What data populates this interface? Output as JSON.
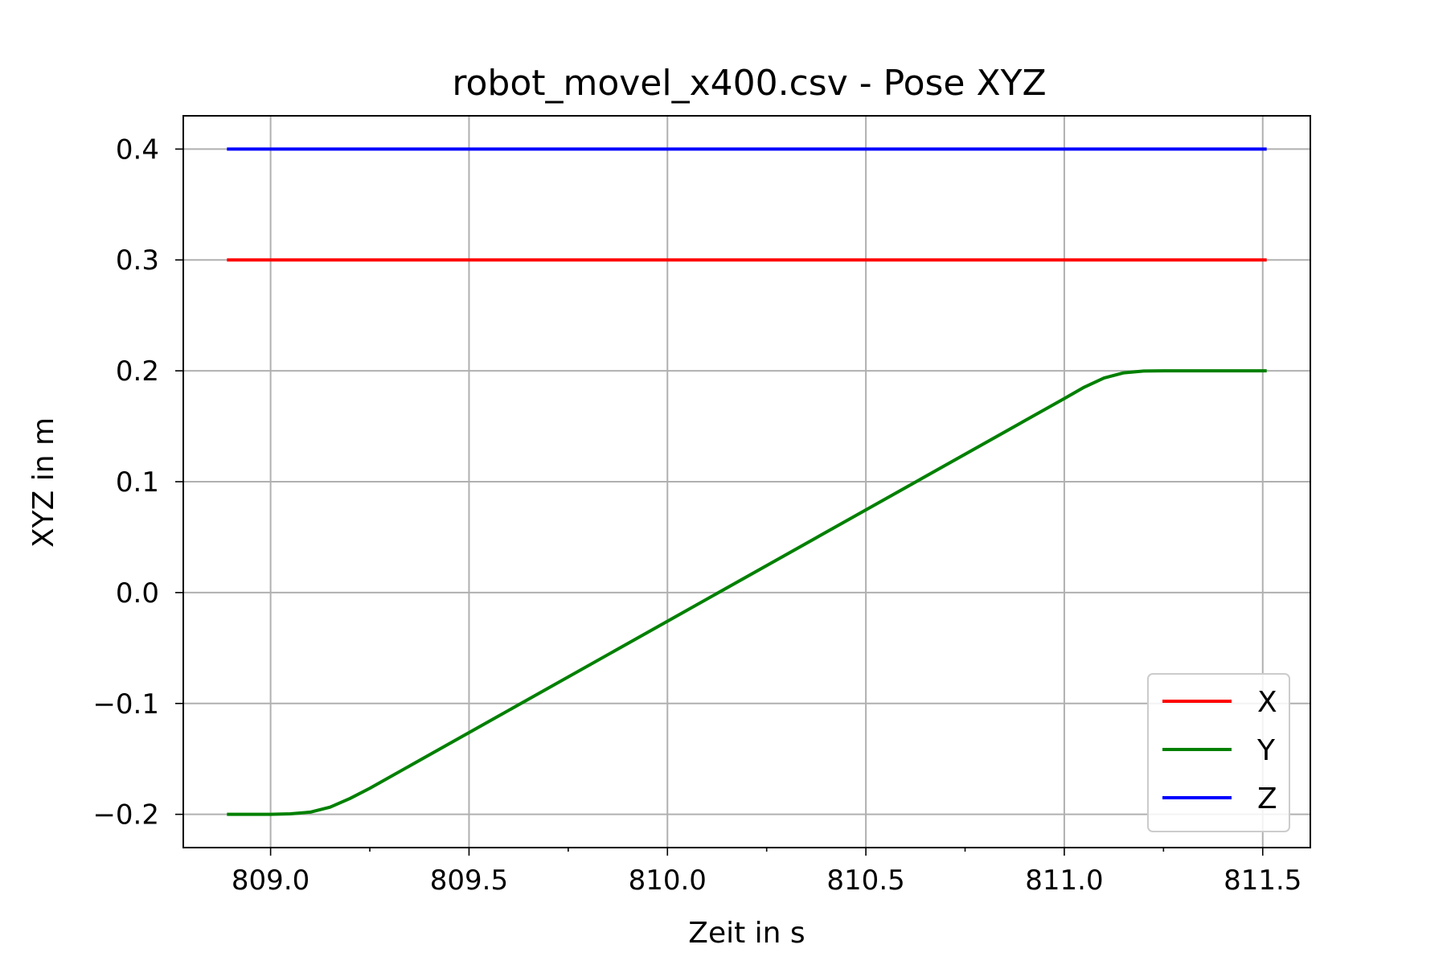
{
  "chart_data": {
    "type": "line",
    "title": "robot_movel_x400.csv - Pose XYZ",
    "xlabel": "Zeit in s",
    "ylabel": "XYZ in m",
    "xlim": [
      808.78,
      811.62
    ],
    "ylim": [
      -0.23,
      0.43
    ],
    "xticks": [
      809.0,
      809.5,
      810.0,
      810.5,
      811.0,
      811.5
    ],
    "xtick_labels": [
      "809.0",
      "809.5",
      "810.0",
      "810.5",
      "811.0",
      "811.5"
    ],
    "xminor_ticks": [
      809.25,
      809.75,
      810.25,
      810.75,
      811.25
    ],
    "yticks": [
      -0.2,
      -0.1,
      0.0,
      0.1,
      0.2,
      0.3,
      0.4
    ],
    "ytick_labels": [
      "−0.2",
      "−0.1",
      "0.0",
      "0.1",
      "0.2",
      "0.3",
      "0.4"
    ],
    "grid": true,
    "legend_position": "bottom-right",
    "series": [
      {
        "name": "X",
        "color": "#ff0000",
        "points": [
          [
            808.89,
            0.3
          ],
          [
            811.51,
            0.3
          ]
        ]
      },
      {
        "name": "Y",
        "color": "#008000",
        "points": [
          [
            808.89,
            -0.2
          ],
          [
            809.0,
            -0.2
          ],
          [
            809.05,
            -0.1995
          ],
          [
            809.1,
            -0.198
          ],
          [
            809.15,
            -0.1935
          ],
          [
            809.2,
            -0.1857
          ],
          [
            809.25,
            -0.1765
          ],
          [
            811.0,
            0.175
          ],
          [
            811.05,
            0.1852
          ],
          [
            811.1,
            0.1935
          ],
          [
            811.15,
            0.1982
          ],
          [
            811.2,
            0.1998
          ],
          [
            811.25,
            0.2
          ],
          [
            811.51,
            0.2
          ]
        ]
      },
      {
        "name": "Z",
        "color": "#0000ff",
        "points": [
          [
            808.89,
            0.4
          ],
          [
            811.51,
            0.4
          ]
        ]
      }
    ]
  }
}
